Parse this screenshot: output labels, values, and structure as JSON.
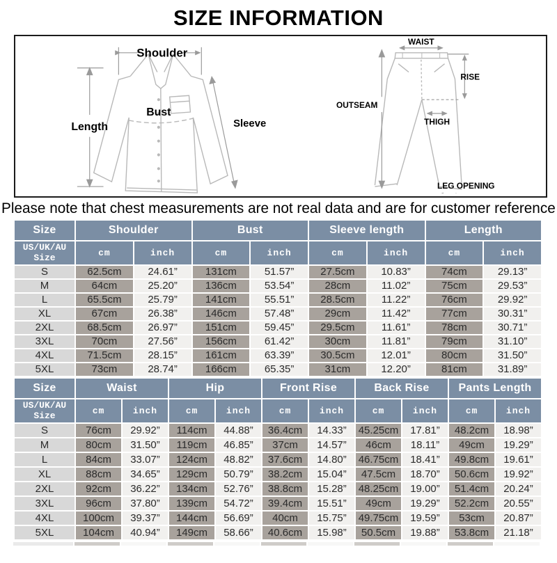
{
  "title": "SIZE INFORMATION",
  "note": "Please note that chest measurements are not real data and are for customer reference only.",
  "colors": {
    "header_bg": "#7b8ea4",
    "size_cell_bg": "#d8d8d8",
    "cm_cell_bg": "#a8a29c",
    "inch_cell_bg": "#f1f0ee",
    "diagram_line": "#b4b4b4",
    "arrow_line": "#9a9a9a"
  },
  "diagram": {
    "shirt": {
      "shoulder_label": "Shoulder",
      "length_label": "Length",
      "bust_label": "Bust",
      "sleeve_label": "Sleeve"
    },
    "pants": {
      "waist_label": "WAIST",
      "rise_label": "RISE",
      "outseam_label": "OUTSEAM",
      "thigh_label": "THIGH",
      "leg_opening_label": "LEG OPENING"
    }
  },
  "tables": [
    {
      "size_header": "Size",
      "size_subheader": "US/UK/AU\nSize",
      "groups": [
        "Shoulder",
        "Bust",
        "Sleeve length",
        "Length"
      ],
      "unit_headers": [
        "cm",
        "inch"
      ],
      "rows": [
        [
          "S",
          "62.5cm",
          "24.61”",
          "131cm",
          "51.57”",
          "27.5cm",
          "10.83”",
          "74cm",
          "29.13”"
        ],
        [
          "M",
          "64cm",
          "25.20”",
          "136cm",
          "53.54”",
          "28cm",
          "11.02”",
          "75cm",
          "29.53”"
        ],
        [
          "L",
          "65.5cm",
          "25.79”",
          "141cm",
          "55.51”",
          "28.5cm",
          "11.22”",
          "76cm",
          "29.92”"
        ],
        [
          "XL",
          "67cm",
          "26.38”",
          "146cm",
          "57.48”",
          "29cm",
          "11.42”",
          "77cm",
          "30.31”"
        ],
        [
          "2XL",
          "68.5cm",
          "26.97”",
          "151cm",
          "59.45”",
          "29.5cm",
          "11.61”",
          "78cm",
          "30.71”"
        ],
        [
          "3XL",
          "70cm",
          "27.56”",
          "156cm",
          "61.42”",
          "30cm",
          "11.81”",
          "79cm",
          "31.10”"
        ],
        [
          "4XL",
          "71.5cm",
          "28.15”",
          "161cm",
          "63.39”",
          "30.5cm",
          "12.01”",
          "80cm",
          "31.50”"
        ],
        [
          "5XL",
          "73cm",
          "28.74”",
          "166cm",
          "65.35”",
          "31cm",
          "12.20”",
          "81cm",
          "31.89”"
        ]
      ]
    },
    {
      "size_header": "Size",
      "size_subheader": "US/UK/AU\nSize",
      "groups": [
        "Waist",
        "Hip",
        "Front Rise",
        "Back Rise",
        "Pants Length"
      ],
      "unit_headers": [
        "cm",
        "inch"
      ],
      "rows": [
        [
          "S",
          "76cm",
          "29.92”",
          "114cm",
          "44.88”",
          "36.4cm",
          "14.33”",
          "45.25cm",
          "17.81”",
          "48.2cm",
          "18.98”"
        ],
        [
          "M",
          "80cm",
          "31.50”",
          "119cm",
          "46.85”",
          "37cm",
          "14.57”",
          "46cm",
          "18.11”",
          "49cm",
          "19.29”"
        ],
        [
          "L",
          "84cm",
          "33.07”",
          "124cm",
          "48.82”",
          "37.6cm",
          "14.80”",
          "46.75cm",
          "18.41”",
          "49.8cm",
          "19.61”"
        ],
        [
          "XL",
          "88cm",
          "34.65”",
          "129cm",
          "50.79”",
          "38.2cm",
          "15.04”",
          "47.5cm",
          "18.70”",
          "50.6cm",
          "19.92”"
        ],
        [
          "2XL",
          "92cm",
          "36.22”",
          "134cm",
          "52.76”",
          "38.8cm",
          "15.28”",
          "48.25cm",
          "19.00”",
          "51.4cm",
          "20.24”"
        ],
        [
          "3XL",
          "96cm",
          "37.80”",
          "139cm",
          "54.72”",
          "39.4cm",
          "15.51”",
          "49cm",
          "19.29”",
          "52.2cm",
          "20.55”"
        ],
        [
          "4XL",
          "100cm",
          "39.37”",
          "144cm",
          "56.69”",
          "40cm",
          "15.75”",
          "49.75cm",
          "19.59”",
          "53cm",
          "20.87”"
        ],
        [
          "5XL",
          "104cm",
          "40.94”",
          "149cm",
          "58.66”",
          "40.6cm",
          "15.98”",
          "50.5cm",
          "19.88”",
          "53.8cm",
          "21.18”"
        ]
      ]
    }
  ]
}
